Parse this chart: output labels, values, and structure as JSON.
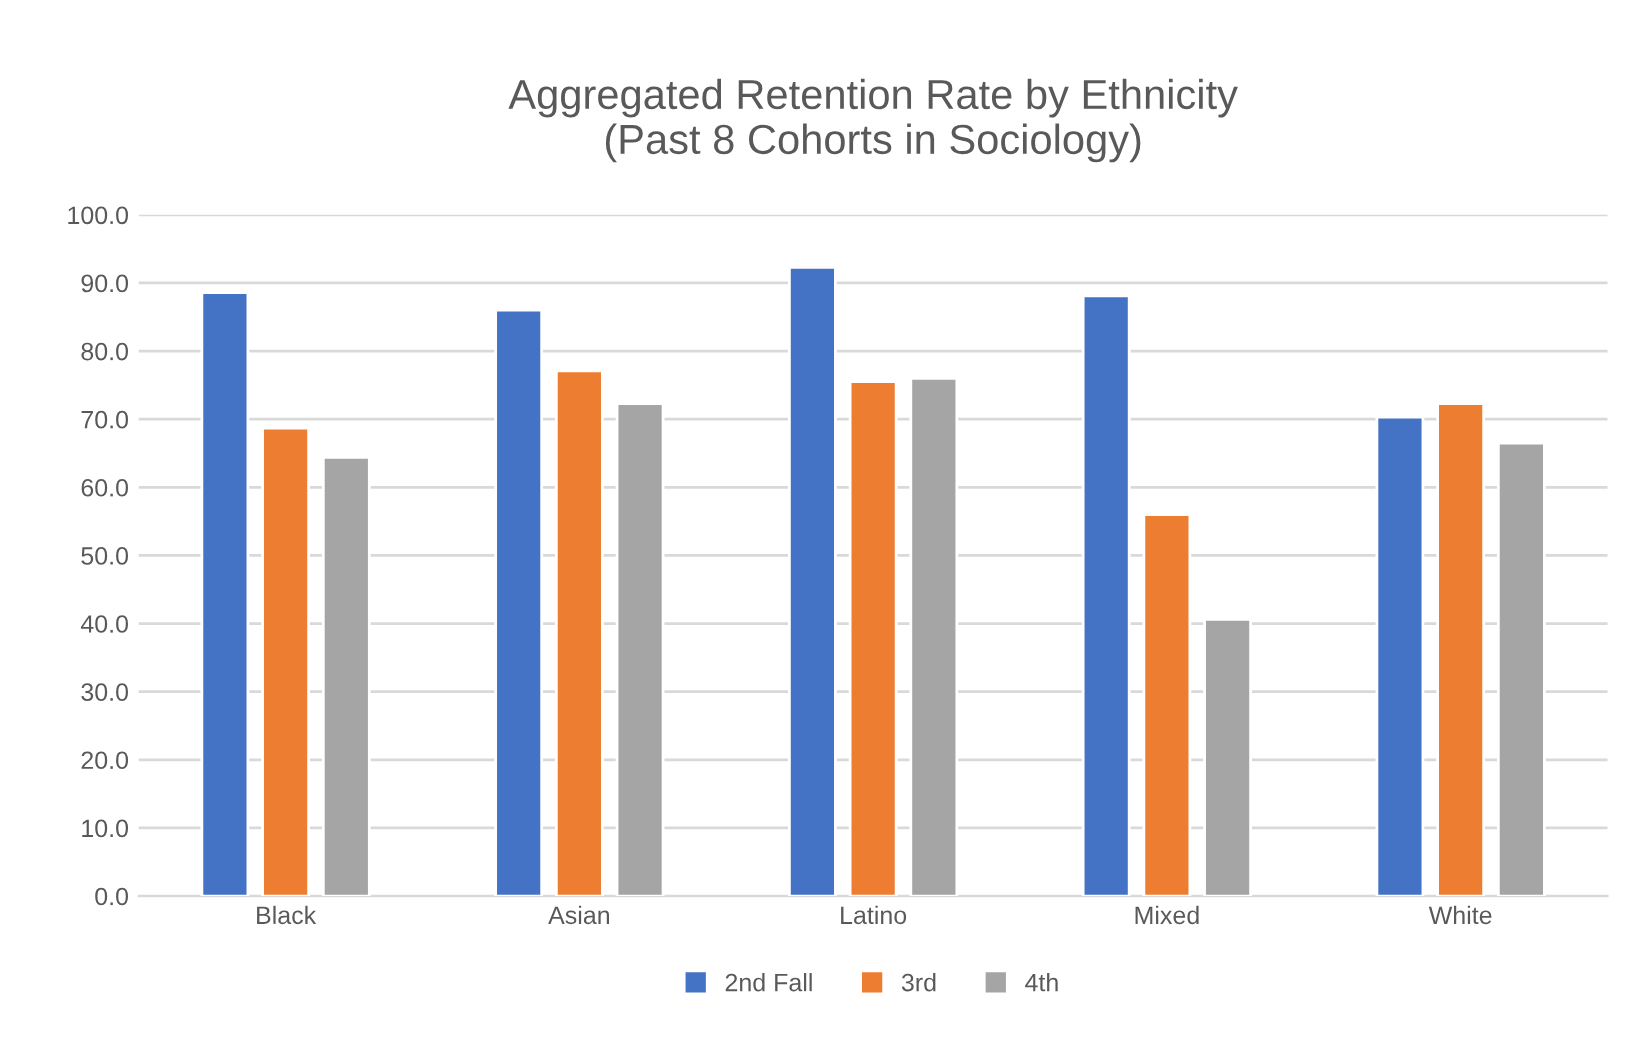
{
  "chart_data": {
    "type": "bar",
    "title": "Aggregated Retention Rate by Ethnicity\n(Past 8 Cohorts in Sociology)",
    "categories": [
      "Black",
      "Asian",
      "Latino",
      "Mixed",
      "White"
    ],
    "series": [
      {
        "name": "2nd Fall",
        "color": "#4472c4",
        "values": [
          88.6,
          86.0,
          92.3,
          88.1,
          70.3
        ]
      },
      {
        "name": "3rd",
        "color": "#ed7d31",
        "values": [
          68.7,
          77.1,
          75.5,
          56.0,
          72.3
        ]
      },
      {
        "name": "4th",
        "color": "#a5a5a5",
        "values": [
          64.4,
          72.3,
          76.0,
          40.6,
          66.5
        ]
      }
    ],
    "ylim": [
      0,
      100
    ],
    "yticks": [
      {
        "value": 0,
        "label": "0.0"
      },
      {
        "value": 10,
        "label": "10.0"
      },
      {
        "value": 20,
        "label": "20.0"
      },
      {
        "value": 30,
        "label": "30.0"
      },
      {
        "value": 40,
        "label": "40.0"
      },
      {
        "value": 50,
        "label": "50.0"
      },
      {
        "value": 60,
        "label": "60.0"
      },
      {
        "value": 70,
        "label": "70.0"
      },
      {
        "value": 80,
        "label": "80.0"
      },
      {
        "value": 90,
        "label": "90.0"
      },
      {
        "value": 100,
        "label": "100.0"
      }
    ],
    "grid": "y",
    "legend": "bottom"
  }
}
